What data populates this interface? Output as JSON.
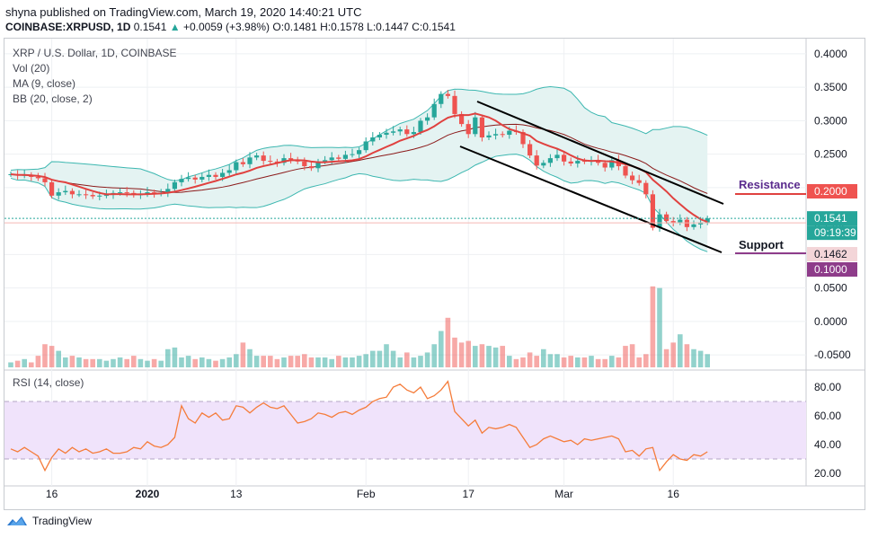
{
  "header": {
    "publish_line": "shyna published on TradingView.com, March 19, 2020 14:40:21 UTC",
    "symbol": "COINBASE:XRPUSD, 1D",
    "last": "0.1541",
    "change": "+0.0059 (+3.98%)",
    "ohlc": "O:0.1481 H:0.1578 L:0.1447 C:0.1541"
  },
  "legend": {
    "title": "XRP / U.S. Dollar, 1D, COINBASE",
    "vol": "Vol (20)",
    "ma": "MA (9, close)",
    "bb": "BB (20, close, 2)",
    "rsi": "RSI (14, close)"
  },
  "price_axis": {
    "ticks": [
      "0.4000",
      "0.3500",
      "0.3000",
      "0.2500",
      "0.2000",
      "0.1541",
      "0.1462",
      "0.1000",
      "0.0500",
      "0.0000",
      "-0.0500"
    ],
    "tick_values": [
      0.4,
      0.35,
      0.3,
      0.25,
      0.2,
      0.1541,
      0.1462,
      0.1,
      0.05,
      0.0,
      -0.05
    ],
    "last_price_label": "0.1541",
    "countdown": "09:19:39",
    "bb_lower_label": "0.1462",
    "resistance_label": "0.2000",
    "support_label": "0.1000"
  },
  "rsi_axis": {
    "ticks": [
      "80.00",
      "60.00",
      "40.00",
      "20.00"
    ],
    "tick_values": [
      80,
      60,
      40,
      20
    ],
    "upper_band": 70,
    "lower_band": 30
  },
  "time_axis": {
    "labels": [
      "16",
      "2020",
      "13",
      "Feb",
      "17",
      "Mar",
      "16"
    ],
    "bar_index": [
      6,
      20,
      33,
      52,
      67,
      81,
      97
    ]
  },
  "annotations": {
    "resistance": "Resistance",
    "support": "Support"
  },
  "colors": {
    "up": "#26a69a",
    "down": "#ef5350",
    "ma": "#e0413f",
    "bb_mid": "#8b1a1a",
    "bb_band": "#3cb7b0",
    "bb_fill": "#e4f3f2",
    "rsi_line": "#f57c3a",
    "rsi_fill": "#f0e3fb",
    "resistance_text": "#5b2c8e",
    "support_text": "#131722",
    "resistance_line": "#e0413f",
    "support_line": "#8e3c8a"
  },
  "footer": {
    "brand": "TradingView"
  },
  "chart_data": {
    "type": "candlestick",
    "symbol": "XRP / U.S. Dollar",
    "interval": "1D",
    "ylim": [
      -0.07,
      0.42
    ],
    "rsi_ylim": [
      15,
      90
    ],
    "closes": [
      0.22,
      0.218,
      0.219,
      0.216,
      0.214,
      0.208,
      0.188,
      0.193,
      0.195,
      0.19,
      0.19,
      0.189,
      0.187,
      0.188,
      0.189,
      0.192,
      0.193,
      0.192,
      0.189,
      0.19,
      0.193,
      0.191,
      0.192,
      0.198,
      0.208,
      0.213,
      0.215,
      0.212,
      0.216,
      0.219,
      0.216,
      0.222,
      0.226,
      0.238,
      0.235,
      0.245,
      0.248,
      0.24,
      0.239,
      0.237,
      0.244,
      0.242,
      0.239,
      0.232,
      0.229,
      0.239,
      0.241,
      0.245,
      0.243,
      0.249,
      0.25,
      0.256,
      0.269,
      0.275,
      0.279,
      0.282,
      0.284,
      0.287,
      0.28,
      0.283,
      0.3,
      0.305,
      0.325,
      0.34,
      0.337,
      0.31,
      0.295,
      0.28,
      0.305,
      0.275,
      0.278,
      0.28,
      0.279,
      0.285,
      0.283,
      0.265,
      0.248,
      0.233,
      0.237,
      0.244,
      0.249,
      0.239,
      0.236,
      0.24,
      0.239,
      0.241,
      0.237,
      0.23,
      0.241,
      0.232,
      0.218,
      0.211,
      0.207,
      0.19,
      0.14,
      0.16,
      0.15,
      0.148,
      0.152,
      0.141,
      0.145,
      0.148,
      0.154
    ],
    "volumes": [
      3,
      4,
      5,
      3,
      7,
      14,
      13,
      10,
      6,
      7,
      6,
      5,
      5,
      5,
      4,
      5,
      6,
      5,
      7,
      5,
      4,
      5,
      4,
      11,
      12,
      6,
      7,
      5,
      6,
      5,
      4,
      5,
      6,
      8,
      15,
      11,
      7,
      7,
      7,
      5,
      6,
      7,
      7,
      8,
      6,
      6,
      6,
      5,
      7,
      6,
      6,
      7,
      8,
      10,
      10,
      14,
      10,
      6,
      9,
      6,
      7,
      9,
      14,
      22,
      30,
      18,
      15,
      16,
      13,
      14,
      13,
      12,
      13,
      7,
      5,
      6,
      9,
      7,
      11,
      8,
      8,
      6,
      7,
      6,
      6,
      7,
      5,
      5,
      7,
      6,
      13,
      14,
      6,
      8,
      49,
      48,
      11,
      15,
      20,
      14,
      11,
      10,
      8
    ],
    "rsi": [
      37,
      35,
      38,
      35,
      32,
      22,
      31,
      37,
      34,
      38,
      35,
      37,
      34,
      35,
      37,
      34,
      34,
      35,
      38,
      37,
      42,
      39,
      38,
      40,
      45,
      67,
      58,
      55,
      62,
      59,
      62,
      57,
      58,
      67,
      66,
      62,
      66,
      69,
      66,
      65,
      67,
      61,
      55,
      56,
      58,
      62,
      61,
      59,
      62,
      63,
      61,
      64,
      66,
      70,
      72,
      73,
      80,
      82,
      78,
      76,
      80,
      72,
      74,
      78,
      84,
      63,
      58,
      53,
      57,
      48,
      52,
      51,
      52,
      54,
      52,
      45,
      38,
      40,
      44,
      46,
      44,
      42,
      43,
      40,
      44,
      43,
      44,
      45,
      46,
      44,
      35,
      36,
      32,
      37,
      38,
      22,
      28,
      33,
      30,
      29,
      33,
      32,
      35
    ],
    "resistance_level": 0.2,
    "support_level": 0.1
  }
}
